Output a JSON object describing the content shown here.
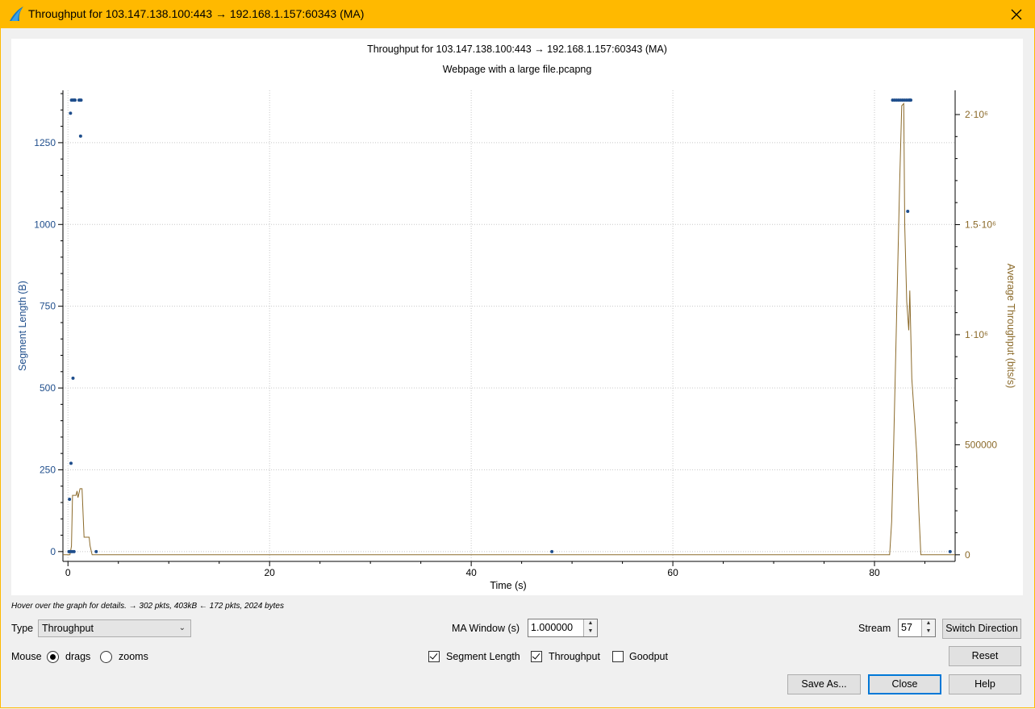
{
  "window": {
    "title": "Throughput for 103.147.138.100:443 → 192.168.1.157:60343 (MA)"
  },
  "chart_data": {
    "type": "scatter",
    "title": "Throughput for 103.147.138.100:443 → 192.168.1.157:60343 (MA)",
    "subtitle": "Webpage with a large file.pcapng",
    "xlabel": "Time (s)",
    "ylabel": "Segment Length (B)",
    "y2label": "Average Throughput (bits/s)",
    "xlim": [
      -0.5,
      88
    ],
    "ylim": [
      -30,
      1410
    ],
    "y2lim": [
      -30000,
      2110000
    ],
    "x_ticks": [
      0,
      20,
      40,
      60,
      80
    ],
    "y_ticks": [
      0,
      250,
      500,
      750,
      1000,
      1250
    ],
    "y2_ticks": [
      {
        "value": 0,
        "label": "0"
      },
      {
        "value": 500000,
        "label": "500000"
      },
      {
        "value": 1000000,
        "label": "1·10⁶"
      },
      {
        "value": 1500000,
        "label": "1.5·10⁶"
      },
      {
        "value": 2000000,
        "label": "2·10⁶"
      }
    ],
    "grid": true,
    "series": [
      {
        "name": "Segment Length",
        "kind": "scatter",
        "color": "#1f4e8c",
        "points": [
          [
            0.1,
            0
          ],
          [
            0.15,
            160
          ],
          [
            0.2,
            0
          ],
          [
            0.25,
            1340
          ],
          [
            0.3,
            270
          ],
          [
            0.35,
            1380
          ],
          [
            0.4,
            0
          ],
          [
            0.45,
            1380
          ],
          [
            0.5,
            530
          ],
          [
            0.55,
            1380
          ],
          [
            0.6,
            0
          ],
          [
            0.65,
            1380
          ],
          [
            0.7,
            1380
          ],
          [
            1.1,
            1380
          ],
          [
            1.2,
            1380
          ],
          [
            1.25,
            1270
          ],
          [
            1.3,
            1380
          ],
          [
            2.8,
            0
          ],
          [
            48,
            0
          ],
          [
            81.8,
            1380
          ],
          [
            82.0,
            1380
          ],
          [
            82.2,
            1380
          ],
          [
            82.4,
            1380
          ],
          [
            82.6,
            1380
          ],
          [
            82.8,
            1380
          ],
          [
            83.0,
            1380
          ],
          [
            83.2,
            1380
          ],
          [
            83.4,
            1380
          ],
          [
            83.5,
            1380
          ],
          [
            83.6,
            1380
          ],
          [
            83.3,
            1040
          ],
          [
            87.5,
            0
          ]
        ]
      },
      {
        "name": "Throughput",
        "kind": "line",
        "color": "#8b6a2a",
        "points": [
          [
            -0.5,
            0
          ],
          [
            0.2,
            0
          ],
          [
            0.35,
            40000
          ],
          [
            0.45,
            270000
          ],
          [
            0.8,
            270000
          ],
          [
            0.9,
            290000
          ],
          [
            1.0,
            260000
          ],
          [
            1.2,
            300000
          ],
          [
            1.4,
            300000
          ],
          [
            1.6,
            80000
          ],
          [
            2.1,
            80000
          ],
          [
            2.2,
            40000
          ],
          [
            2.4,
            0
          ],
          [
            81.5,
            0
          ],
          [
            81.7,
            150000
          ],
          [
            81.9,
            500000
          ],
          [
            82.1,
            900000
          ],
          [
            82.3,
            1300000
          ],
          [
            82.5,
            1700000
          ],
          [
            82.7,
            2040000
          ],
          [
            82.9,
            2050000
          ],
          [
            83.0,
            1500000
          ],
          [
            83.2,
            1150000
          ],
          [
            83.4,
            1020000
          ],
          [
            83.5,
            1200000
          ],
          [
            83.7,
            800000
          ],
          [
            84.0,
            600000
          ],
          [
            84.2,
            450000
          ],
          [
            84.4,
            200000
          ],
          [
            84.6,
            0
          ],
          [
            88,
            0
          ]
        ]
      }
    ]
  },
  "hint": "Hover over the graph for details. → 302 pkts, 403kB ← 172 pkts, 2024 bytes",
  "controls": {
    "type_label": "Type",
    "type_value": "Throughput",
    "ma_window_label": "MA Window (s)",
    "ma_window_value": "1.000000",
    "stream_label": "Stream",
    "stream_value": "57",
    "switch_direction": "Switch Direction",
    "mouse_label": "Mouse",
    "drags_label": "drags",
    "zooms_label": "zooms",
    "segment_length_label": "Segment Length",
    "throughput_label": "Throughput",
    "goodput_label": "Goodput",
    "reset": "Reset",
    "save_as": "Save As...",
    "close": "Close",
    "help": "Help"
  },
  "colors": {
    "titlebar": "#ffb900",
    "segment_axis": "#1f4e8c",
    "throughput_axis": "#8b6a2a"
  }
}
